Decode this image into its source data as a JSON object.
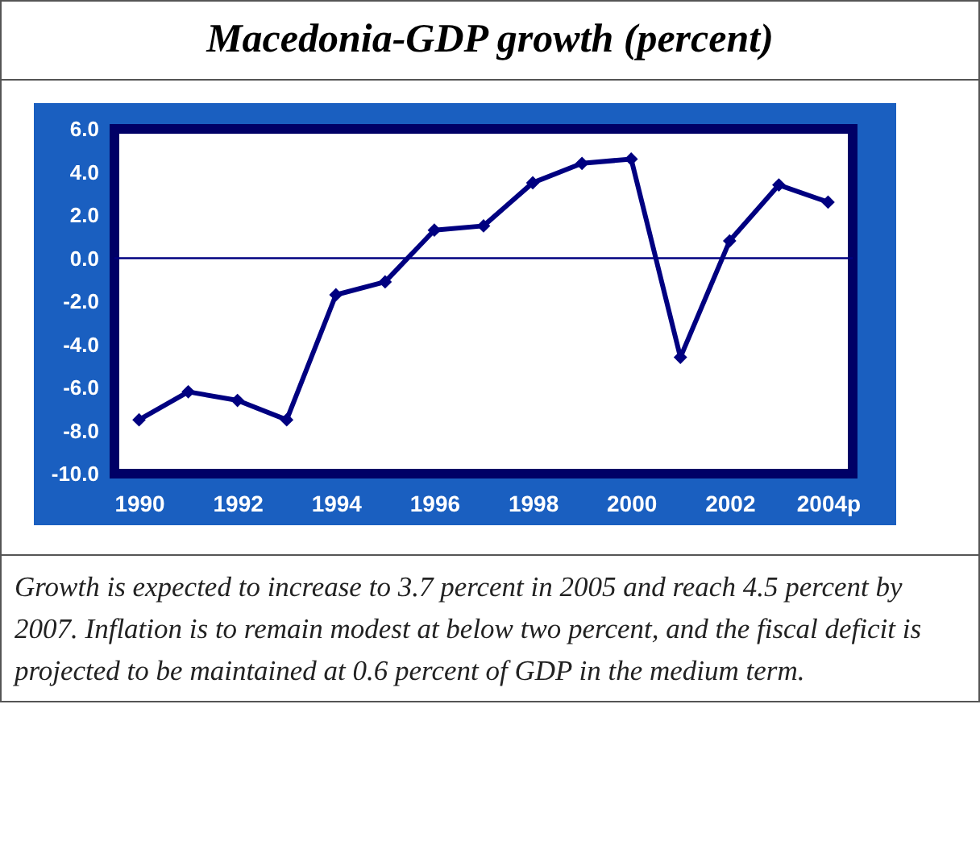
{
  "chart_data": {
    "type": "line",
    "title": "Macedonia-GDP growth (percent)",
    "categories": [
      "1990",
      null,
      "1992",
      null,
      "1994",
      null,
      "1996",
      null,
      "1998",
      null,
      "2000",
      null,
      "2002",
      null,
      "2004p"
    ],
    "series": [
      {
        "color": "#000080",
        "values": [
          -7.5,
          -6.2,
          -6.6,
          -7.5,
          -1.7,
          -1.1,
          1.3,
          1.5,
          3.5,
          4.4,
          4.6,
          -4.6,
          0.8,
          3.4,
          2.6
        ]
      }
    ],
    "ylim": [
      -10,
      6
    ],
    "yticks": [
      {
        "value": 6,
        "label": "6.0"
      },
      {
        "value": 4,
        "label": "4.0"
      },
      {
        "value": 2,
        "label": "2.0"
      },
      {
        "value": 0,
        "label": "0.0"
      },
      {
        "value": -2,
        "label": "-2.0"
      },
      {
        "value": -4,
        "label": "-4.0"
      },
      {
        "value": -6,
        "label": "-6.0"
      },
      {
        "value": -8,
        "label": "-8.0"
      },
      {
        "value": -10,
        "label": "-10.0"
      }
    ],
    "ref_lines": [
      {
        "axis": "y",
        "value": 0,
        "color": "#000080"
      }
    ],
    "marker": "diamond",
    "grid": false,
    "legend": false,
    "annotations": [
      "Growth is expected to increase to 3.7 percent in 2005 and reach 4.5 percent by 2007. Inflation is to remain modest at below two percent, and the fiscal deficit is projected to be maintained at 0.6 percent of GDP in the medium term."
    ]
  }
}
